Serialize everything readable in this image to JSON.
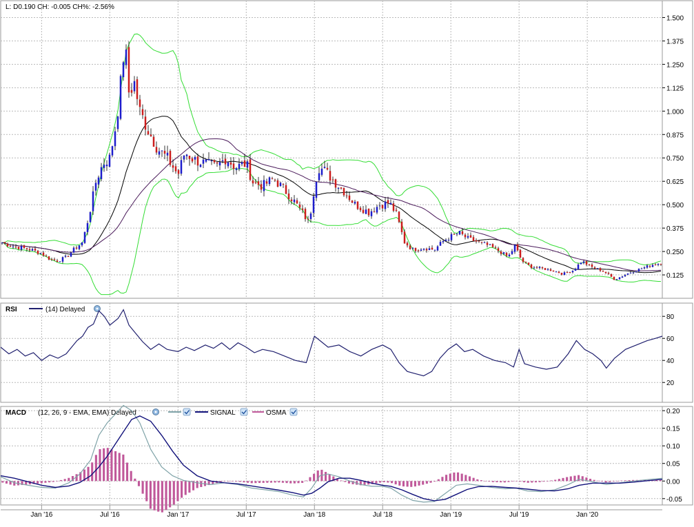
{
  "header": {
    "readout": "L: D0.190 CH: -0.005 CH%: -2.56%"
  },
  "colors": {
    "candle_up": "#1c1ccc",
    "candle_down": "#cc1c1c",
    "wick": "#000000",
    "bollinger": "#33dd33",
    "ma_short": "#000000",
    "ma_long": "#4a1a5a",
    "rsi_line": "#1f1f6e",
    "macd_line": "#7fa3a8",
    "signal_line": "#10107a",
    "osma_bar": "#c0589a",
    "grid": "#b8b8b8",
    "axis": "#000000"
  },
  "chart_data": [
    {
      "type": "candlestick",
      "name": "price",
      "x_ticks": [
        "Jan '16",
        "Jul '16",
        "Jan '17",
        "Jul '17",
        "Jan '18",
        "Jul '18",
        "Jan '19",
        "Jul '19",
        "Jan '20"
      ],
      "y_ticks": [
        "1.500",
        "1.375",
        "1.250",
        "1.125",
        "1.000",
        "0.875",
        "0.750",
        "0.625",
        "0.500",
        "0.375",
        "0.250",
        "0.125"
      ],
      "ylim": [
        0.0,
        1.59
      ],
      "x_range": [
        2015.7,
        2020.55
      ],
      "overlays": [
        "Bollinger Bands",
        "Moving Average (short)",
        "Moving Average (long)"
      ],
      "close_path": [
        [
          2015.7,
          0.3
        ],
        [
          2015.78,
          0.28
        ],
        [
          2015.85,
          0.27
        ],
        [
          2015.92,
          0.26
        ],
        [
          2016.0,
          0.24
        ],
        [
          2016.06,
          0.21
        ],
        [
          2016.12,
          0.2
        ],
        [
          2016.18,
          0.22
        ],
        [
          2016.25,
          0.27
        ],
        [
          2016.3,
          0.3
        ],
        [
          2016.35,
          0.45
        ],
        [
          2016.4,
          0.63
        ],
        [
          2016.45,
          0.72
        ],
        [
          2016.5,
          0.75
        ],
        [
          2016.55,
          0.95
        ],
        [
          2016.58,
          1.15
        ],
        [
          2016.61,
          1.37
        ],
        [
          2016.64,
          1.1
        ],
        [
          2016.68,
          1.15
        ],
        [
          2016.72,
          1.0
        ],
        [
          2016.78,
          0.9
        ],
        [
          2016.85,
          0.8
        ],
        [
          2016.92,
          0.75
        ],
        [
          2017.0,
          0.66
        ],
        [
          2017.05,
          0.78
        ],
        [
          2017.12,
          0.74
        ],
        [
          2017.2,
          0.72
        ],
        [
          2017.28,
          0.7
        ],
        [
          2017.35,
          0.75
        ],
        [
          2017.42,
          0.7
        ],
        [
          2017.5,
          0.72
        ],
        [
          2017.55,
          0.62
        ],
        [
          2017.62,
          0.6
        ],
        [
          2017.7,
          0.64
        ],
        [
          2017.78,
          0.58
        ],
        [
          2017.85,
          0.52
        ],
        [
          2017.92,
          0.45
        ],
        [
          2017.96,
          0.4
        ],
        [
          2018.0,
          0.6
        ],
        [
          2018.03,
          0.7
        ],
        [
          2018.08,
          0.68
        ],
        [
          2018.15,
          0.62
        ],
        [
          2018.22,
          0.57
        ],
        [
          2018.3,
          0.5
        ],
        [
          2018.4,
          0.46
        ],
        [
          2018.48,
          0.5
        ],
        [
          2018.55,
          0.51
        ],
        [
          2018.6,
          0.45
        ],
        [
          2018.66,
          0.3
        ],
        [
          2018.72,
          0.26
        ],
        [
          2018.8,
          0.27
        ],
        [
          2018.88,
          0.26
        ],
        [
          2018.95,
          0.31
        ],
        [
          2019.0,
          0.33
        ],
        [
          2019.06,
          0.35
        ],
        [
          2019.12,
          0.32
        ],
        [
          2019.2,
          0.3
        ],
        [
          2019.28,
          0.28
        ],
        [
          2019.36,
          0.25
        ],
        [
          2019.42,
          0.22
        ],
        [
          2019.47,
          0.28
        ],
        [
          2019.52,
          0.2
        ],
        [
          2019.58,
          0.17
        ],
        [
          2019.66,
          0.16
        ],
        [
          2019.74,
          0.15
        ],
        [
          2019.82,
          0.13
        ],
        [
          2019.9,
          0.15
        ],
        [
          2019.96,
          0.2
        ],
        [
          2020.02,
          0.17
        ],
        [
          2020.1,
          0.15
        ],
        [
          2020.15,
          0.13
        ],
        [
          2020.2,
          0.1
        ],
        [
          2020.26,
          0.12
        ],
        [
          2020.32,
          0.14
        ],
        [
          2020.4,
          0.16
        ],
        [
          2020.48,
          0.18
        ],
        [
          2020.55,
          0.19
        ]
      ]
    },
    {
      "type": "line",
      "name": "RSI",
      "legend": "(14) Delayed",
      "y_ticks": [
        "80",
        "60",
        "40",
        "20"
      ],
      "ylim": [
        2,
        92
      ],
      "x_range": [
        2015.7,
        2020.55
      ],
      "points": [
        [
          2015.7,
          52
        ],
        [
          2015.76,
          46
        ],
        [
          2015.82,
          50
        ],
        [
          2015.88,
          44
        ],
        [
          2015.94,
          47
        ],
        [
          2016.0,
          40
        ],
        [
          2016.06,
          45
        ],
        [
          2016.12,
          42
        ],
        [
          2016.18,
          46
        ],
        [
          2016.22,
          52
        ],
        [
          2016.26,
          58
        ],
        [
          2016.3,
          62
        ],
        [
          2016.34,
          70
        ],
        [
          2016.38,
          73
        ],
        [
          2016.42,
          85
        ],
        [
          2016.46,
          80
        ],
        [
          2016.5,
          72
        ],
        [
          2016.56,
          78
        ],
        [
          2016.6,
          86
        ],
        [
          2016.64,
          72
        ],
        [
          2016.68,
          66
        ],
        [
          2016.74,
          57
        ],
        [
          2016.8,
          50
        ],
        [
          2016.86,
          55
        ],
        [
          2016.92,
          50
        ],
        [
          2017.0,
          48
        ],
        [
          2017.06,
          52
        ],
        [
          2017.12,
          49
        ],
        [
          2017.2,
          54
        ],
        [
          2017.26,
          51
        ],
        [
          2017.32,
          56
        ],
        [
          2017.38,
          50
        ],
        [
          2017.44,
          56
        ],
        [
          2017.5,
          52
        ],
        [
          2017.56,
          47
        ],
        [
          2017.62,
          50
        ],
        [
          2017.7,
          48
        ],
        [
          2017.78,
          44
        ],
        [
          2017.86,
          40
        ],
        [
          2017.94,
          38
        ],
        [
          2018.0,
          62
        ],
        [
          2018.04,
          58
        ],
        [
          2018.1,
          52
        ],
        [
          2018.18,
          54
        ],
        [
          2018.26,
          48
        ],
        [
          2018.34,
          44
        ],
        [
          2018.42,
          50
        ],
        [
          2018.5,
          54
        ],
        [
          2018.56,
          50
        ],
        [
          2018.62,
          38
        ],
        [
          2018.68,
          30
        ],
        [
          2018.74,
          28
        ],
        [
          2018.8,
          26
        ],
        [
          2018.86,
          30
        ],
        [
          2018.92,
          42
        ],
        [
          2018.98,
          50
        ],
        [
          2019.04,
          55
        ],
        [
          2019.1,
          48
        ],
        [
          2019.16,
          50
        ],
        [
          2019.24,
          44
        ],
        [
          2019.32,
          40
        ],
        [
          2019.4,
          38
        ],
        [
          2019.46,
          34
        ],
        [
          2019.5,
          50
        ],
        [
          2019.54,
          37
        ],
        [
          2019.62,
          34
        ],
        [
          2019.7,
          32
        ],
        [
          2019.78,
          34
        ],
        [
          2019.86,
          46
        ],
        [
          2019.92,
          58
        ],
        [
          2019.98,
          50
        ],
        [
          2020.04,
          46
        ],
        [
          2020.1,
          40
        ],
        [
          2020.14,
          33
        ],
        [
          2020.2,
          42
        ],
        [
          2020.28,
          50
        ],
        [
          2020.36,
          54
        ],
        [
          2020.44,
          58
        ],
        [
          2020.5,
          60
        ],
        [
          2020.55,
          62
        ]
      ]
    },
    {
      "type": "line+bar",
      "name": "MACD",
      "legend": "(12, 26, 9 - EMA, EMA) Delayed",
      "series_names": [
        "SIGNAL",
        "OSMA"
      ],
      "y_ticks": [
        "0.20",
        "0.15",
        "0.10",
        "0.05",
        "0.00",
        "-0.05"
      ],
      "ylim": [
        -0.068,
        0.212
      ],
      "x_range": [
        2015.7,
        2020.55
      ],
      "macd": [
        [
          2015.7,
          0.012
        ],
        [
          2015.8,
          -0.005
        ],
        [
          2015.9,
          -0.012
        ],
        [
          2016.0,
          -0.018
        ],
        [
          2016.1,
          -0.02
        ],
        [
          2016.2,
          -0.005
        ],
        [
          2016.28,
          0.02
        ],
        [
          2016.36,
          0.06
        ],
        [
          2016.42,
          0.13
        ],
        [
          2016.48,
          0.165
        ],
        [
          2016.54,
          0.19
        ],
        [
          2016.6,
          0.215
        ],
        [
          2016.66,
          0.2
        ],
        [
          2016.72,
          0.165
        ],
        [
          2016.8,
          0.09
        ],
        [
          2016.88,
          0.04
        ],
        [
          2016.96,
          0.015
        ],
        [
          2017.04,
          0.002
        ],
        [
          2017.14,
          -0.005
        ],
        [
          2017.24,
          -0.01
        ],
        [
          2017.34,
          -0.005
        ],
        [
          2017.44,
          -0.01
        ],
        [
          2017.54,
          -0.02
        ],
        [
          2017.64,
          -0.025
        ],
        [
          2017.74,
          -0.03
        ],
        [
          2017.84,
          -0.04
        ],
        [
          2017.92,
          -0.045
        ],
        [
          2017.98,
          -0.02
        ],
        [
          2018.04,
          0.015
        ],
        [
          2018.1,
          0.02
        ],
        [
          2018.18,
          0.012
        ],
        [
          2018.26,
          0.0
        ],
        [
          2018.34,
          -0.01
        ],
        [
          2018.42,
          -0.015
        ],
        [
          2018.5,
          -0.015
        ],
        [
          2018.56,
          -0.02
        ],
        [
          2018.64,
          -0.04
        ],
        [
          2018.72,
          -0.055
        ],
        [
          2018.8,
          -0.06
        ],
        [
          2018.88,
          -0.058
        ],
        [
          2018.96,
          -0.035
        ],
        [
          2019.04,
          -0.012
        ],
        [
          2019.12,
          -0.008
        ],
        [
          2019.2,
          -0.012
        ],
        [
          2019.3,
          -0.018
        ],
        [
          2019.4,
          -0.022
        ],
        [
          2019.48,
          -0.02
        ],
        [
          2019.56,
          -0.028
        ],
        [
          2019.66,
          -0.03
        ],
        [
          2019.76,
          -0.025
        ],
        [
          2019.86,
          -0.01
        ],
        [
          2019.94,
          0.005
        ],
        [
          2020.04,
          -0.002
        ],
        [
          2020.14,
          -0.01
        ],
        [
          2020.24,
          -0.005
        ],
        [
          2020.34,
          0.0
        ],
        [
          2020.44,
          0.004
        ],
        [
          2020.55,
          0.008
        ]
      ],
      "signal": [
        [
          2015.7,
          0.015
        ],
        [
          2015.8,
          0.008
        ],
        [
          2015.9,
          -0.002
        ],
        [
          2016.0,
          -0.012
        ],
        [
          2016.1,
          -0.018
        ],
        [
          2016.2,
          -0.014
        ],
        [
          2016.28,
          -0.004
        ],
        [
          2016.36,
          0.015
        ],
        [
          2016.42,
          0.04
        ],
        [
          2016.48,
          0.07
        ],
        [
          2016.54,
          0.105
        ],
        [
          2016.6,
          0.14
        ],
        [
          2016.66,
          0.175
        ],
        [
          2016.72,
          0.185
        ],
        [
          2016.8,
          0.17
        ],
        [
          2016.88,
          0.13
        ],
        [
          2016.96,
          0.085
        ],
        [
          2017.04,
          0.045
        ],
        [
          2017.14,
          0.015
        ],
        [
          2017.24,
          0.0
        ],
        [
          2017.34,
          -0.005
        ],
        [
          2017.44,
          -0.008
        ],
        [
          2017.54,
          -0.014
        ],
        [
          2017.64,
          -0.02
        ],
        [
          2017.74,
          -0.026
        ],
        [
          2017.84,
          -0.033
        ],
        [
          2017.92,
          -0.04
        ],
        [
          2017.98,
          -0.035
        ],
        [
          2018.04,
          -0.02
        ],
        [
          2018.1,
          -0.002
        ],
        [
          2018.18,
          0.008
        ],
        [
          2018.26,
          0.008
        ],
        [
          2018.34,
          0.002
        ],
        [
          2018.42,
          -0.006
        ],
        [
          2018.5,
          -0.012
        ],
        [
          2018.56,
          -0.015
        ],
        [
          2018.64,
          -0.025
        ],
        [
          2018.72,
          -0.038
        ],
        [
          2018.8,
          -0.05
        ],
        [
          2018.88,
          -0.056
        ],
        [
          2018.96,
          -0.052
        ],
        [
          2019.04,
          -0.038
        ],
        [
          2019.12,
          -0.024
        ],
        [
          2019.2,
          -0.016
        ],
        [
          2019.3,
          -0.015
        ],
        [
          2019.4,
          -0.018
        ],
        [
          2019.48,
          -0.02
        ],
        [
          2019.56,
          -0.023
        ],
        [
          2019.66,
          -0.027
        ],
        [
          2019.76,
          -0.028
        ],
        [
          2019.86,
          -0.022
        ],
        [
          2019.94,
          -0.012
        ],
        [
          2020.04,
          -0.006
        ],
        [
          2020.14,
          -0.006
        ],
        [
          2020.24,
          -0.006
        ],
        [
          2020.34,
          -0.003
        ],
        [
          2020.44,
          0.001
        ],
        [
          2020.55,
          0.005
        ]
      ]
    }
  ]
}
